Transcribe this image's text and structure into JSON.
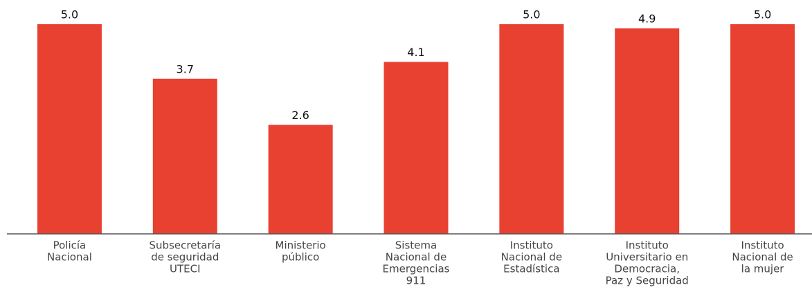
{
  "chart_data": {
    "type": "bar",
    "categories": [
      [
        "Policía",
        "Nacional"
      ],
      [
        "Subsecretaría",
        "de seguridad",
        "UTECI"
      ],
      [
        "Ministerio",
        "público"
      ],
      [
        "Sistema",
        "Nacional de",
        "Emergencias",
        "911"
      ],
      [
        "Instituto",
        "Nacional de",
        "Estadística"
      ],
      [
        "Instituto",
        "Universitario en",
        "Democracia,",
        "Paz y Seguridad"
      ],
      [
        "Instituto",
        "Nacional de",
        "la mujer"
      ]
    ],
    "values": [
      5.0,
      3.7,
      2.6,
      4.1,
      5.0,
      4.9,
      5.0
    ],
    "value_labels": [
      "5.0",
      "3.7",
      "2.6",
      "4.1",
      "5.0",
      "4.9",
      "5.0"
    ],
    "color": "#e84031",
    "ylim": [
      0,
      5
    ]
  }
}
